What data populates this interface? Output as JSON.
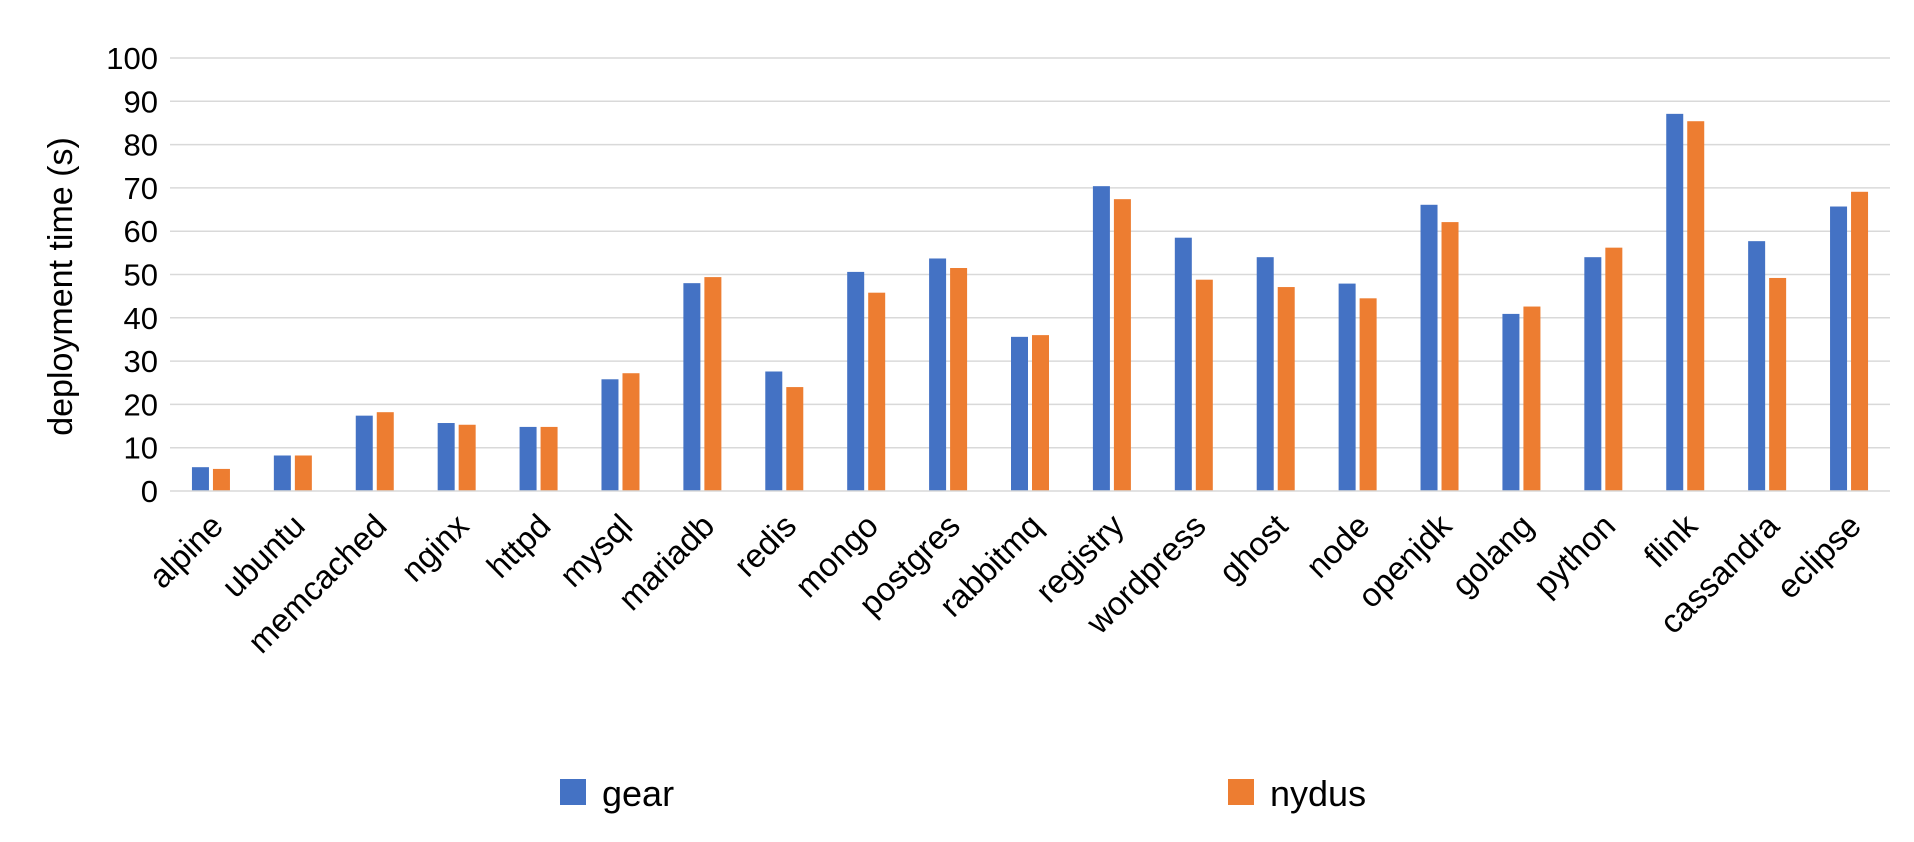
{
  "chart_data": {
    "type": "bar",
    "title": "",
    "xlabel": "",
    "ylabel": "deployment time (s)",
    "ylim": [
      0,
      100
    ],
    "yticks": [
      0,
      10,
      20,
      30,
      40,
      50,
      60,
      70,
      80,
      90,
      100
    ],
    "grid": true,
    "legend_position": "bottom",
    "categories": [
      "alpine",
      "ubuntu",
      "memcached",
      "nginx",
      "httpd",
      "mysql",
      "mariadb",
      "redis",
      "mongo",
      "postgres",
      "rabbitmq",
      "registry",
      "wordpress",
      "ghost",
      "node",
      "openjdk",
      "golang",
      "python",
      "flink",
      "cassandra",
      "eclipse"
    ],
    "series": [
      {
        "name": "gear",
        "color": "#4472c4",
        "values": [
          5.5,
          8.2,
          17.4,
          15.7,
          14.8,
          25.8,
          48.0,
          27.6,
          50.6,
          53.7,
          35.6,
          70.4,
          58.5,
          54.0,
          47.9,
          66.1,
          40.9,
          54.0,
          87.1,
          57.7,
          65.7
        ]
      },
      {
        "name": "nydus",
        "color": "#ed7d31",
        "values": [
          5.1,
          8.2,
          18.2,
          15.3,
          14.8,
          27.2,
          49.4,
          24.0,
          45.8,
          51.5,
          36.0,
          67.4,
          48.8,
          47.1,
          44.5,
          62.1,
          42.6,
          56.2,
          85.4,
          49.2,
          69.1
        ]
      }
    ]
  }
}
